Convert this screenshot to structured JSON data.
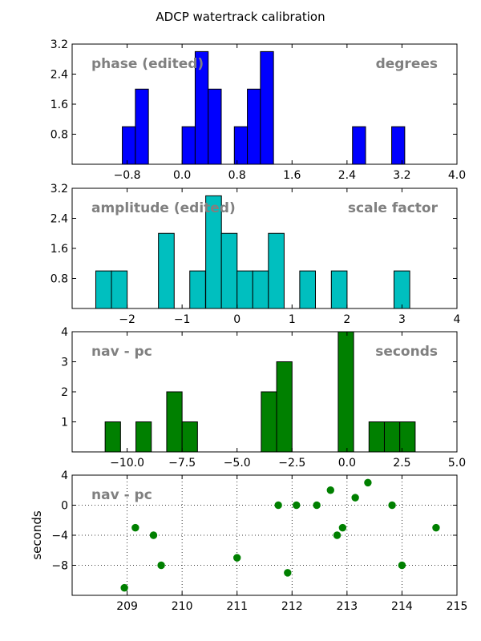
{
  "figure": {
    "title": "ADCP watertrack calibration"
  },
  "chart_data": [
    {
      "type": "bar",
      "panel": "phase",
      "label_left": "phase (edited)",
      "label_right": "degrees",
      "xlim": [
        -1.6,
        4.0
      ],
      "ylim": [
        0,
        3.2
      ],
      "xticks": [
        -0.8,
        0.0,
        0.8,
        1.6,
        2.4,
        3.2,
        4.0
      ],
      "xtick_labels": [
        "−0.8",
        "0.0",
        "0.8",
        "1.6",
        "2.4",
        "3.2",
        "4.0"
      ],
      "yticks": [
        0.8,
        1.6,
        2.4,
        3.2
      ],
      "ytick_labels": [
        "0.8",
        "1.6",
        "2.4",
        "3.2"
      ],
      "color": "#0000ff",
      "bin_width": 0.19,
      "bins": [
        {
          "x": -0.87,
          "value": 1
        },
        {
          "x": -0.68,
          "value": 2
        },
        {
          "x": 0.0,
          "value": 1
        },
        {
          "x": 0.19,
          "value": 3
        },
        {
          "x": 0.38,
          "value": 2
        },
        {
          "x": 0.76,
          "value": 1
        },
        {
          "x": 0.95,
          "value": 2
        },
        {
          "x": 1.14,
          "value": 3
        },
        {
          "x": 2.48,
          "value": 1
        },
        {
          "x": 3.05,
          "value": 1
        }
      ]
    },
    {
      "type": "bar",
      "panel": "amplitude",
      "label_left": "amplitude (edited)",
      "label_right": "scale factor",
      "xlim": [
        -3,
        4
      ],
      "ylim": [
        0,
        3.2
      ],
      "xticks": [
        -2,
        -1,
        0,
        1,
        2,
        3,
        4
      ],
      "xtick_labels": [
        "−2",
        "−1",
        "0",
        "1",
        "2",
        "3",
        "4"
      ],
      "yticks": [
        0.8,
        1.6,
        2.4,
        3.2
      ],
      "ytick_labels": [
        "0.8",
        "1.6",
        "2.4",
        "3.2"
      ],
      "color": "#00bfbf",
      "bin_width": 0.286,
      "bins": [
        {
          "x": -2.57,
          "value": 1
        },
        {
          "x": -2.285,
          "value": 1
        },
        {
          "x": -1.43,
          "value": 2
        },
        {
          "x": -0.86,
          "value": 1
        },
        {
          "x": -0.57,
          "value": 3
        },
        {
          "x": -0.285,
          "value": 2
        },
        {
          "x": 0.0,
          "value": 1
        },
        {
          "x": 0.285,
          "value": 1
        },
        {
          "x": 0.57,
          "value": 2
        },
        {
          "x": 1.14,
          "value": 1
        },
        {
          "x": 1.715,
          "value": 1
        },
        {
          "x": 2.855,
          "value": 1
        }
      ]
    },
    {
      "type": "bar",
      "panel": "nav",
      "label_left": "nav - pc",
      "label_right": "seconds",
      "xlim": [
        -12.5,
        5.0
      ],
      "ylim": [
        0,
        4
      ],
      "xticks": [
        -10.0,
        -7.5,
        -5.0,
        -2.5,
        0.0,
        2.5,
        5.0
      ],
      "xtick_labels": [
        "−10.0",
        "−7.5",
        "−5.0",
        "−2.5",
        "0.0",
        "2.5",
        "5.0"
      ],
      "yticks": [
        1,
        2,
        3,
        4
      ],
      "ytick_labels": [
        "1",
        "2",
        "3",
        "4"
      ],
      "color": "#008000",
      "bin_width": 0.7,
      "bins": [
        {
          "x": -11.0,
          "value": 1
        },
        {
          "x": -9.6,
          "value": 1
        },
        {
          "x": -8.2,
          "value": 2
        },
        {
          "x": -7.5,
          "value": 1
        },
        {
          "x": -3.9,
          "value": 2
        },
        {
          "x": -3.2,
          "value": 3
        },
        {
          "x": -0.4,
          "value": 4
        },
        {
          "x": 1.0,
          "value": 1
        },
        {
          "x": 1.7,
          "value": 1
        },
        {
          "x": 2.4,
          "value": 1
        }
      ]
    },
    {
      "type": "scatter",
      "panel": "nav_time",
      "label_left": "nav - pc",
      "ylabel": "seconds",
      "xlim": [
        208,
        215
      ],
      "ylim": [
        -12,
        4
      ],
      "xticks": [
        209,
        210,
        211,
        212,
        213,
        214,
        215
      ],
      "xtick_labels": [
        "209",
        "210",
        "211",
        "212",
        "213",
        "214",
        "215"
      ],
      "yticks": [
        -8,
        -4,
        0,
        4
      ],
      "ytick_labels": [
        "−8",
        "−4",
        "0",
        "4"
      ],
      "grid": true,
      "color": "#008000",
      "points": [
        {
          "x": 208.95,
          "y": -11
        },
        {
          "x": 209.15,
          "y": -3
        },
        {
          "x": 209.48,
          "y": -4
        },
        {
          "x": 209.62,
          "y": -8
        },
        {
          "x": 211.0,
          "y": -7
        },
        {
          "x": 211.75,
          "y": 0
        },
        {
          "x": 211.92,
          "y": -9
        },
        {
          "x": 212.08,
          "y": 0
        },
        {
          "x": 212.45,
          "y": 0
        },
        {
          "x": 212.7,
          "y": 2
        },
        {
          "x": 212.82,
          "y": -4
        },
        {
          "x": 212.92,
          "y": -3
        },
        {
          "x": 213.15,
          "y": 1
        },
        {
          "x": 213.38,
          "y": 3
        },
        {
          "x": 213.82,
          "y": 0
        },
        {
          "x": 214.0,
          "y": -8
        },
        {
          "x": 214.62,
          "y": -3
        }
      ]
    }
  ]
}
